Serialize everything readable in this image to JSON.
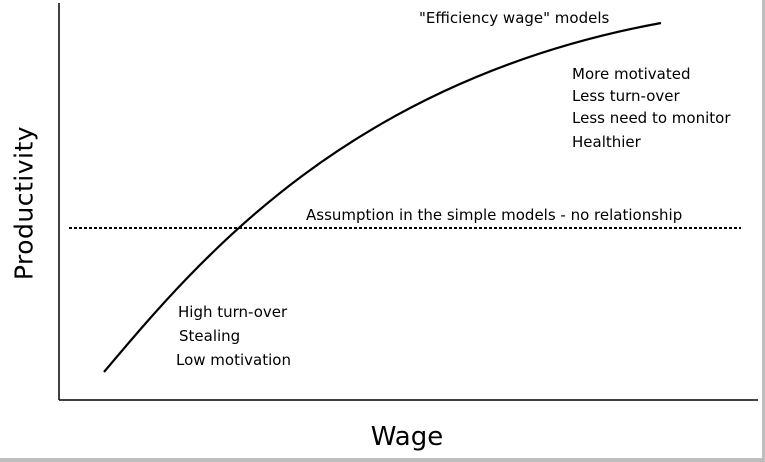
{
  "axes": {
    "x_label": "Wage",
    "y_label": "Productivity"
  },
  "curve_label": "\"Efficiency wage\" models",
  "high_wage_effects": [
    "More motivated",
    "Less turn-over",
    "Less need to monitor",
    "Healthier"
  ],
  "low_wage_effects": [
    "High turn-over",
    "Stealing",
    "Low motivation"
  ],
  "baseline_label": "Assumption in the simple models - no relationship"
}
